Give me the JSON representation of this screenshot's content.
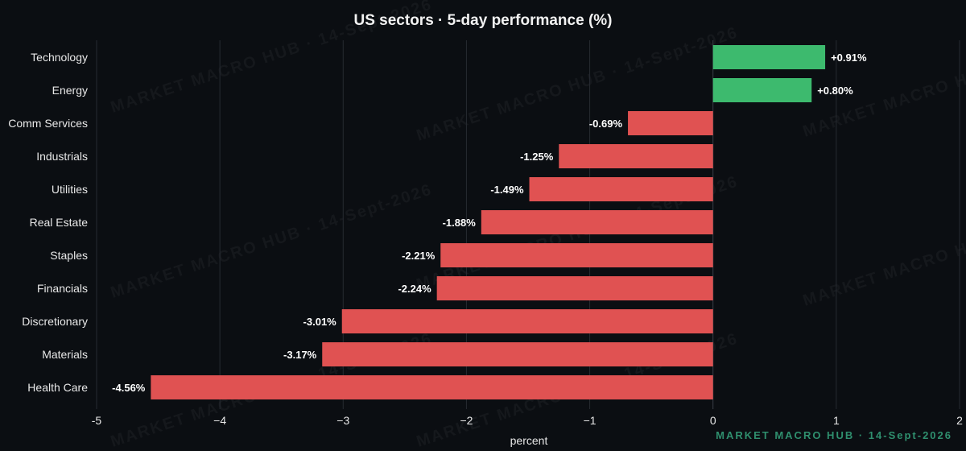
{
  "chart_data": {
    "type": "bar",
    "orientation": "horizontal",
    "title": "US sectors · 5-day performance (%)",
    "xlabel": "percent",
    "ylabel": "",
    "xlim": [
      -5,
      2
    ],
    "xticks": [
      -5,
      -4,
      -3,
      -2,
      -1,
      0,
      1,
      2
    ],
    "xtick_labels": [
      "-5",
      "−4",
      "−3",
      "−2",
      "−1",
      "0",
      "1",
      "2"
    ],
    "grid": "vertical",
    "categories": [
      "Technology",
      "Energy",
      "Comm Services",
      "Industrials",
      "Utilities",
      "Real Estate",
      "Staples",
      "Financials",
      "Discretionary",
      "Materials",
      "Health Care"
    ],
    "values": [
      0.91,
      0.8,
      -0.69,
      -1.25,
      -1.49,
      -1.88,
      -2.21,
      -2.24,
      -3.01,
      -3.17,
      -4.56
    ],
    "value_labels": [
      "+0.91%",
      "+0.80%",
      "-0.69%",
      "-1.25%",
      "-1.49%",
      "-1.88%",
      "-2.21%",
      "-2.24%",
      "-3.01%",
      "-3.17%",
      "-4.56%"
    ],
    "colors": {
      "positive": "#3dba6e",
      "negative": "#e05252"
    }
  },
  "watermark": {
    "text": "MARKET MACRO HUB · 14-Sept-2026"
  },
  "footer": {
    "brand": "MARKET MACRO HUB · 14-Sept-2026"
  }
}
